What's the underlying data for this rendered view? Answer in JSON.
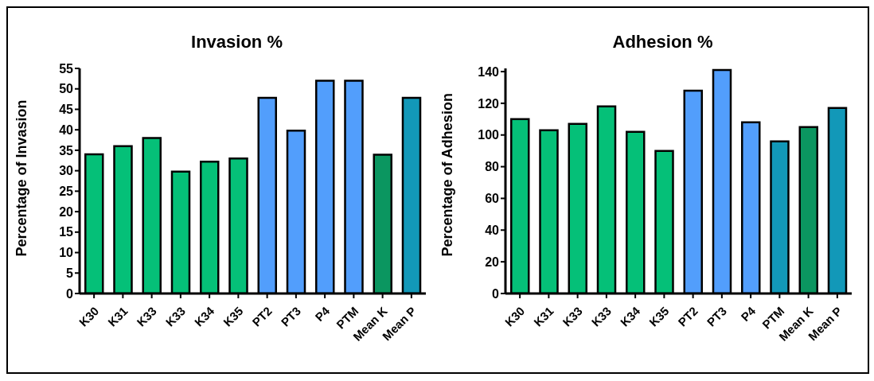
{
  "chart_data": [
    {
      "type": "bar",
      "title": "Invasion %",
      "ylabel": "Percentage of Invasion",
      "categories": [
        "K30",
        "K31",
        "K33",
        "K33",
        "K34",
        "K35",
        "PT2",
        "PT3",
        "P4",
        "PTM",
        "Mean K",
        "Mean P"
      ],
      "values": [
        34,
        36,
        38,
        29.8,
        32.2,
        33,
        47.8,
        39.8,
        52,
        52,
        33.9,
        47.8
      ],
      "colors": [
        "#05c078",
        "#05c078",
        "#05c078",
        "#05c078",
        "#05c078",
        "#05c078",
        "#529efc",
        "#529efc",
        "#529efc",
        "#529efc",
        "#0b9660",
        "#1298b8"
      ],
      "ylim": [
        0,
        55
      ],
      "yticks": [
        0,
        5,
        10,
        15,
        20,
        25,
        30,
        35,
        40,
        45,
        50,
        55
      ],
      "grid": false,
      "legend": false
    },
    {
      "type": "bar",
      "title": "Adhesion %",
      "ylabel": "Percentage of Adhesion",
      "categories": [
        "K30",
        "K31",
        "K33",
        "K33",
        "K34",
        "K35",
        "PT2",
        "PT3",
        "P4",
        "PTM",
        "Mean K",
        "Mean P"
      ],
      "values": [
        110,
        103,
        107,
        118,
        102,
        90,
        128,
        141,
        108,
        96,
        105,
        117
      ],
      "colors": [
        "#05c078",
        "#05c078",
        "#05c078",
        "#05c078",
        "#05c078",
        "#05c078",
        "#529efc",
        "#529efc",
        "#529efc",
        "#1298b8",
        "#0b9660",
        "#1298b8"
      ],
      "ylim": [
        0,
        142
      ],
      "yticks": [
        0,
        20,
        40,
        60,
        80,
        100,
        120,
        140
      ],
      "grid": false,
      "legend": false
    }
  ]
}
